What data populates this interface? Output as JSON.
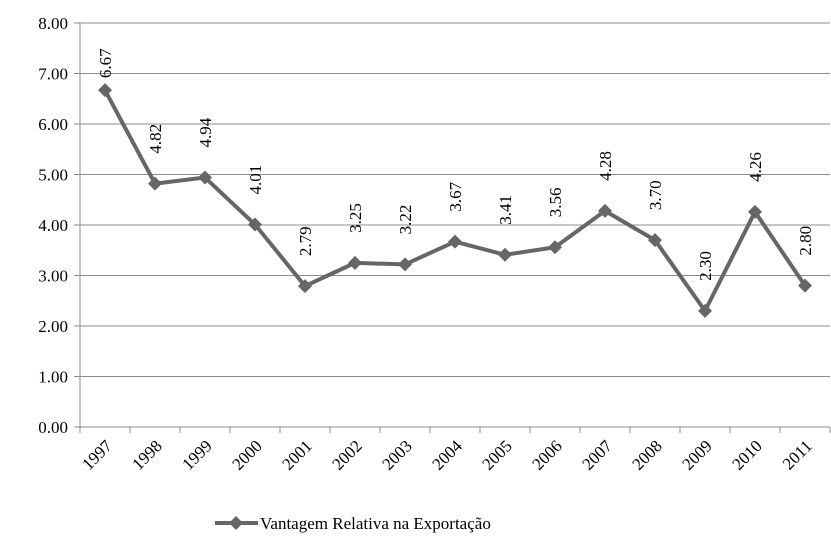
{
  "chart_data": {
    "type": "line",
    "categories": [
      "1997",
      "1998",
      "1999",
      "2000",
      "2001",
      "2002",
      "2003",
      "2004",
      "2005",
      "2006",
      "2007",
      "2008",
      "2009",
      "2010",
      "2011"
    ],
    "series": [
      {
        "name": "Vantagem Relativa na Exportação",
        "color": "#666666",
        "values": [
          6.67,
          4.82,
          4.94,
          4.01,
          2.79,
          3.25,
          3.22,
          3.67,
          3.41,
          3.56,
          4.28,
          3.7,
          2.3,
          4.26,
          2.8
        ],
        "value_labels": [
          "6.67",
          "4.82",
          "4.94",
          "4.01",
          "2.79",
          "3.25",
          "3.22",
          "3.67",
          "3.41",
          "3.56",
          "4.28",
          "3.70",
          "2.30",
          "4.26",
          "2.80"
        ]
      }
    ],
    "ylim": [
      0,
      8
    ],
    "yticks": [
      {
        "value": 0,
        "label": "0.00"
      },
      {
        "value": 1,
        "label": "1.00"
      },
      {
        "value": 2,
        "label": "2.00"
      },
      {
        "value": 3,
        "label": "3.00"
      },
      {
        "value": 4,
        "label": "4.00"
      },
      {
        "value": 5,
        "label": "5.00"
      },
      {
        "value": 6,
        "label": "6.00"
      },
      {
        "value": 7,
        "label": "7.00"
      },
      {
        "value": 8,
        "label": "8.00"
      }
    ],
    "grid": true,
    "legend": "bottom"
  }
}
